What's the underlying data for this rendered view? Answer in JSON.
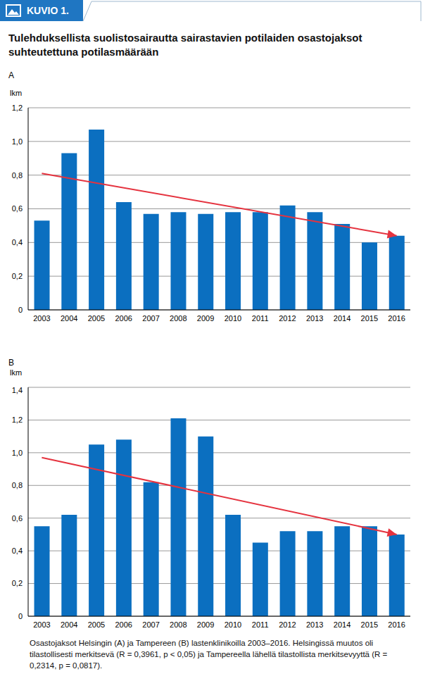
{
  "header": "KUVIO 1.",
  "title": "Tulehduksellista suolistosairautta sairastavien potilaiden osastojaksot suhteutettuna potilasmäärään",
  "caption": "Osastojaksot Helsingin (A) ja Tampereen (B) lastenklinikoilla 2003–2016. Helsingissä muutos oli tilastollisesti merkitsevä (R = 0,3961, p < 0,05) ja Tampereella lähellä tilastollista merkitsevyyttä (R = 0,2314, p = 0,0817).",
  "chart_data": [
    {
      "type": "bar",
      "title": "A",
      "y_label": "lkm",
      "categories": [
        "2003",
        "2004",
        "2005",
        "2006",
        "2007",
        "2008",
        "2009",
        "2010",
        "2011",
        "2012",
        "2013",
        "2014",
        "2015",
        "2016"
      ],
      "values": [
        0.53,
        0.93,
        1.07,
        0.64,
        0.57,
        0.58,
        0.57,
        0.58,
        0.58,
        0.62,
        0.58,
        0.51,
        0.4,
        0.44
      ],
      "color": "#0b6fc0",
      "ylim": [
        0,
        1.2
      ],
      "yticks": [
        0,
        {
          "value": 0.2,
          "label": "0,2"
        },
        {
          "value": 0.4,
          "label": "0,4"
        },
        {
          "value": 0.6,
          "label": "0,6"
        },
        {
          "value": 0.8,
          "label": "0,8"
        },
        {
          "value": 1.0,
          "label": "1,0"
        },
        {
          "value": 1.2,
          "label": "1,2"
        }
      ],
      "grid": true,
      "trend": {
        "x": [
          "2003",
          "2016"
        ],
        "values": [
          0.81,
          0.44
        ],
        "color": "#e5333f"
      }
    },
    {
      "type": "bar",
      "title": "B",
      "y_label": "lkm",
      "categories": [
        "2003",
        "2004",
        "2005",
        "2006",
        "2007",
        "2008",
        "2009",
        "2010",
        "2011",
        "2012",
        "2013",
        "2014",
        "2015",
        "2016"
      ],
      "values": [
        0.55,
        0.62,
        1.05,
        1.08,
        0.82,
        1.21,
        1.1,
        0.62,
        0.45,
        0.52,
        0.52,
        0.55,
        0.55,
        0.5
      ],
      "color": "#0b6fc0",
      "ylim": [
        0,
        1.4
      ],
      "yticks": [
        0,
        {
          "value": 0.2,
          "label": "0,2"
        },
        {
          "value": 0.4,
          "label": "0,4"
        },
        {
          "value": 0.6,
          "label": "0,6"
        },
        {
          "value": 0.8,
          "label": "0,8"
        },
        {
          "value": 1.0,
          "label": "1,0"
        },
        {
          "value": 1.2,
          "label": "1,2"
        },
        {
          "value": 1.4,
          "label": "1,4"
        }
      ],
      "grid": true,
      "trend": {
        "x": [
          "2003",
          "2016"
        ],
        "values": [
          0.97,
          0.5
        ],
        "color": "#e5333f"
      }
    }
  ]
}
